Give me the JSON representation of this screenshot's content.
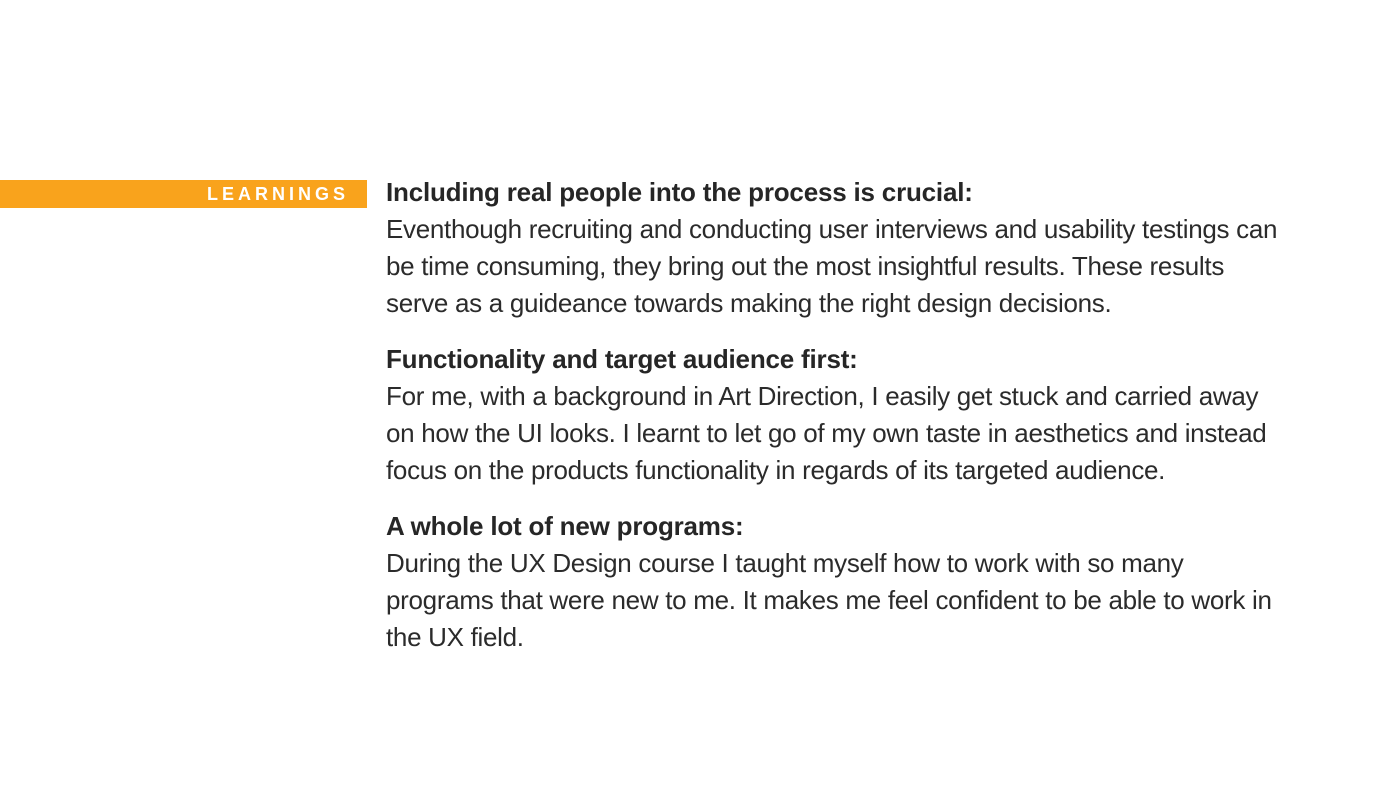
{
  "colors": {
    "accent_orange": "#F9A31C",
    "banner_text": "#ffffff",
    "heading_text": "#262626",
    "body_text": "#2b2b2b",
    "background": "#ffffff"
  },
  "banner": {
    "label": "LEARNINGS"
  },
  "sections": [
    {
      "heading": "Including real people into the process is crucial:",
      "body": "Eventhough recruiting and conducting user interviews and usability testings can\nbe time consuming, they bring out the most insightful results. These results\nserve as a guideance towards making the right design decisions."
    },
    {
      "heading": "Functionality and target audience first:",
      "body": "For me, with a background in Art Direction, I easily get stuck and carried away\non how the UI looks. I learnt to let go of my own taste in aesthetics and instead\nfocus on the products functionality in regards of its targeted audience."
    },
    {
      "heading": "A whole lot of new programs:",
      "body": "During the UX Design course I taught myself how to work with so many\nprograms that were new to me. It makes me feel confident to be able to work in\nthe UX field."
    }
  ]
}
